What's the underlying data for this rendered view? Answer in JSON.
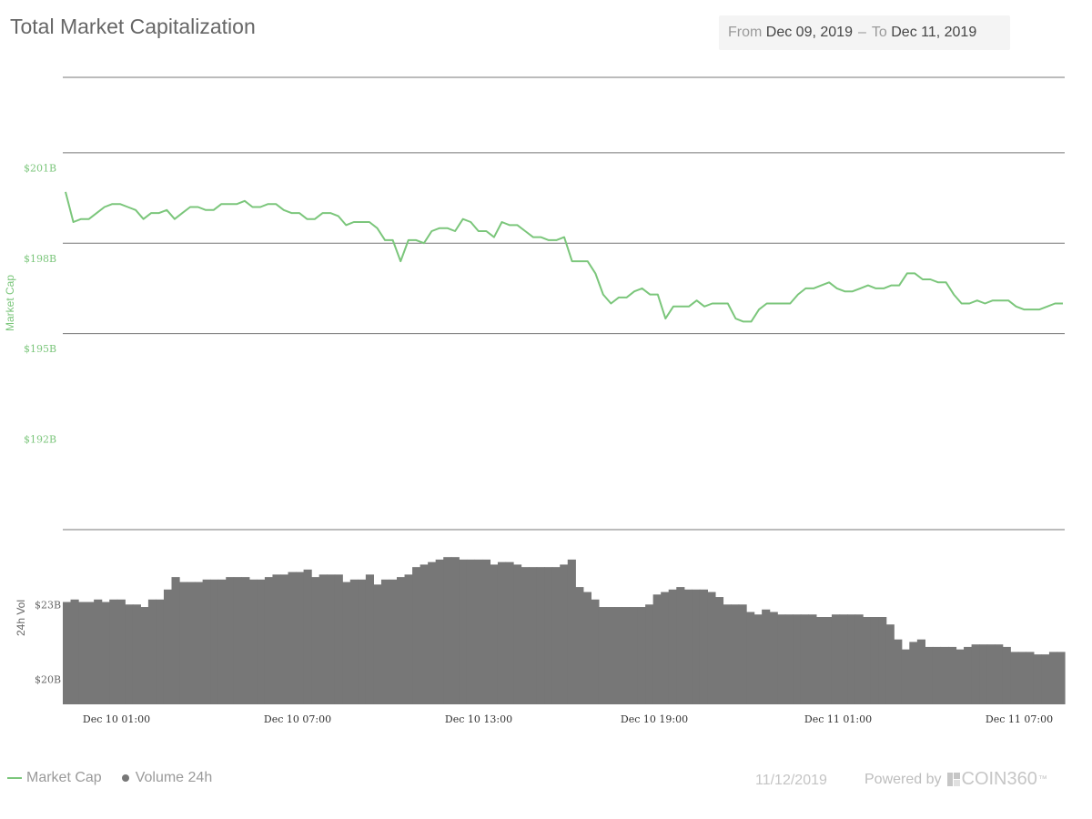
{
  "header": {
    "title": "Total Market Capitalization",
    "range": {
      "from_label": "From",
      "from": "Dec 09, 2019",
      "to_label": "To",
      "to": "Dec 11, 2019",
      "separator": "–"
    }
  },
  "footer": {
    "date": "11/12/2019",
    "powered_label": "Powered by",
    "brand": "COIN360",
    "trademark": "™"
  },
  "legend": [
    {
      "label": "Market Cap",
      "swatch": "line-icon"
    },
    {
      "label": "Volume 24h",
      "swatch": "dot-icon"
    }
  ],
  "colors": {
    "market_cap": "#7bc67b",
    "volume": "#777777",
    "grid": "#777777",
    "axis_label_cap": "#7bc67b",
    "axis_label_vol": "#666666"
  },
  "chart_data": [
    {
      "type": "line",
      "name": "Market Cap",
      "ylabel": "Market Cap",
      "yticks": [
        "$201B",
        "$198B",
        "$195B",
        "$192B"
      ],
      "ylim": [
        189,
        204
      ],
      "x_hours_ticks": [
        "Dec 10 01:00",
        "Dec 10 07:00",
        "Dec 10 13:00",
        "Dec 10 19:00",
        "Dec 11 01:00",
        "Dec 11 07:00"
      ],
      "values": [
        200.2,
        199.2,
        199.3,
        199.3,
        199.5,
        199.7,
        199.8,
        199.8,
        199.7,
        199.6,
        199.3,
        199.5,
        199.5,
        199.6,
        199.3,
        199.5,
        199.7,
        199.7,
        199.6,
        199.6,
        199.8,
        199.8,
        199.8,
        199.9,
        199.7,
        199.7,
        199.8,
        199.8,
        199.6,
        199.5,
        199.5,
        199.3,
        199.3,
        199.5,
        199.5,
        199.4,
        199.1,
        199.2,
        199.2,
        199.2,
        199.0,
        198.6,
        198.6,
        197.9,
        198.6,
        198.6,
        198.5,
        198.9,
        199.0,
        199.0,
        198.9,
        199.3,
        199.2,
        198.9,
        198.9,
        198.7,
        199.2,
        199.1,
        199.1,
        198.9,
        198.7,
        198.7,
        198.6,
        198.6,
        198.7,
        197.9,
        197.9,
        197.9,
        197.5,
        196.8,
        196.5,
        196.7,
        196.7,
        196.9,
        197.0,
        196.8,
        196.8,
        196.0,
        196.4,
        196.4,
        196.4,
        196.6,
        196.4,
        196.5,
        196.5,
        196.5,
        196.0,
        195.9,
        195.9,
        196.3,
        196.5,
        196.5,
        196.5,
        196.5,
        196.8,
        197.0,
        197.0,
        197.1,
        197.2,
        197.0,
        196.9,
        196.9,
        197.0,
        197.1,
        197.0,
        197.0,
        197.1,
        197.1,
        197.5,
        197.5,
        197.3,
        197.3,
        197.2,
        197.2,
        196.8,
        196.5,
        196.5,
        196.6,
        196.5,
        196.6,
        196.6,
        196.6,
        196.4,
        196.3,
        196.3,
        196.3,
        196.4,
        196.5,
        196.5
      ]
    },
    {
      "type": "bar",
      "name": "Volume 24h",
      "ylabel": "24h Vol",
      "yticks": [
        "$23B",
        "$20B"
      ],
      "ylim": [
        19,
        26
      ],
      "values": [
        23.1,
        23.2,
        23.1,
        23.1,
        23.2,
        23.1,
        23.2,
        23.2,
        23.0,
        23.0,
        22.9,
        23.2,
        23.2,
        23.6,
        24.1,
        23.9,
        23.9,
        23.9,
        24.0,
        24.0,
        24.0,
        24.1,
        24.1,
        24.1,
        24.0,
        24.0,
        24.1,
        24.2,
        24.2,
        24.3,
        24.3,
        24.4,
        24.1,
        24.2,
        24.2,
        24.2,
        23.9,
        24.0,
        24.0,
        24.2,
        23.8,
        24.0,
        24.0,
        24.1,
        24.2,
        24.5,
        24.6,
        24.7,
        24.8,
        24.9,
        24.9,
        24.8,
        24.8,
        24.8,
        24.8,
        24.6,
        24.7,
        24.7,
        24.6,
        24.5,
        24.5,
        24.5,
        24.5,
        24.5,
        24.6,
        24.8,
        23.7,
        23.5,
        23.2,
        22.9,
        22.9,
        22.9,
        22.9,
        22.9,
        22.9,
        23.0,
        23.4,
        23.5,
        23.6,
        23.7,
        23.6,
        23.6,
        23.6,
        23.5,
        23.3,
        23.0,
        23.0,
        23.0,
        22.7,
        22.6,
        22.8,
        22.7,
        22.6,
        22.6,
        22.6,
        22.6,
        22.6,
        22.5,
        22.5,
        22.6,
        22.6,
        22.6,
        22.6,
        22.5,
        22.5,
        22.5,
        22.2,
        21.6,
        21.2,
        21.5,
        21.6,
        21.3,
        21.3,
        21.3,
        21.3,
        21.2,
        21.3,
        21.4,
        21.4,
        21.4,
        21.4,
        21.3,
        21.1,
        21.1,
        21.1,
        21.0,
        21.0,
        21.1,
        21.1
      ]
    }
  ]
}
